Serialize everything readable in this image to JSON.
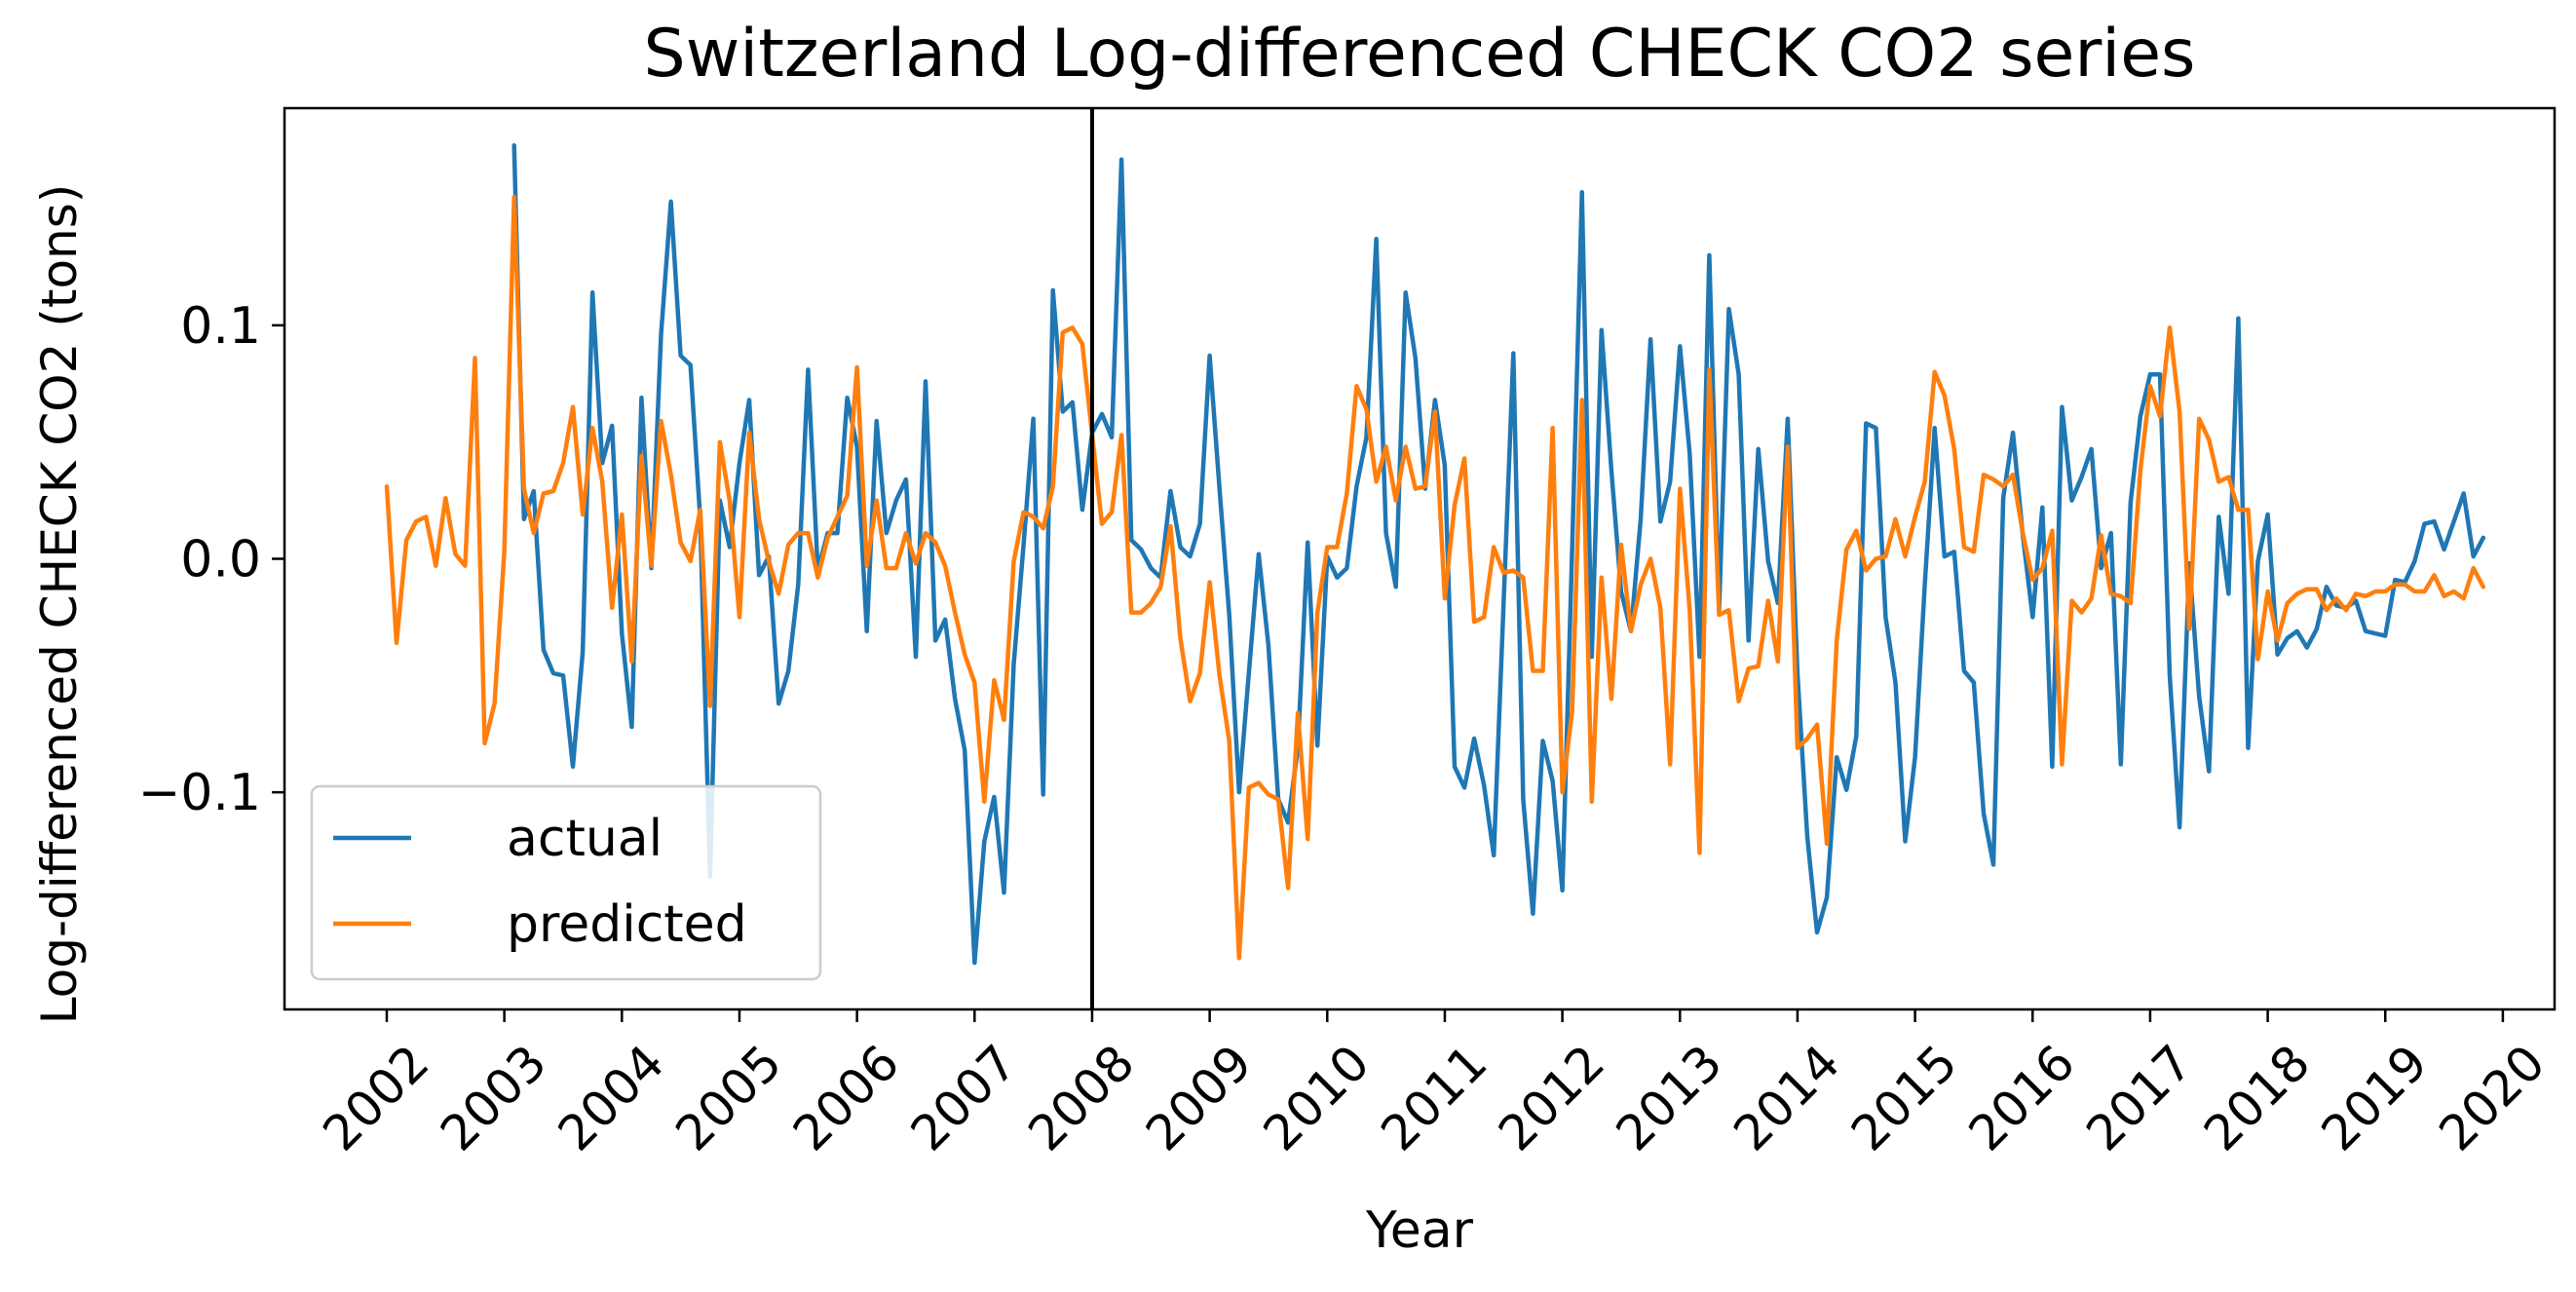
{
  "chart_data": {
    "type": "line",
    "title": "Switzerland Log-differenced CHECK CO2 series",
    "xlabel": "Year",
    "ylabel": "Log-differenced CHECK CO2 (tons)",
    "x_start": "2002-01",
    "x_step_months": 1,
    "xlim": [
      2001.13,
      2020.44
    ],
    "ylim": [
      -0.193,
      0.193
    ],
    "x_ticks": [
      "2002",
      "2003",
      "2004",
      "2005",
      "2006",
      "2007",
      "2008",
      "2009",
      "2010",
      "2011",
      "2012",
      "2013",
      "2014",
      "2015",
      "2016",
      "2017",
      "2018",
      "2019",
      "2020"
    ],
    "y_ticks": [
      {
        "value": 0.1,
        "label": "0.1"
      },
      {
        "value": 0.0,
        "label": "0.0"
      },
      {
        "value": -0.1,
        "label": "−0.1"
      }
    ],
    "vline": {
      "x": "2008-01"
    },
    "grid": false,
    "legend": {
      "position": "lower-left"
    },
    "series": [
      {
        "name": "actual",
        "color": "#1f77b4",
        "values": [
          null,
          null,
          null,
          null,
          null,
          null,
          null,
          null,
          null,
          null,
          null,
          null,
          null,
          0.177,
          0.017,
          0.029,
          -0.039,
          -0.049,
          -0.05,
          -0.089,
          -0.04,
          0.114,
          0.041,
          0.057,
          -0.032,
          -0.072,
          0.069,
          -0.004,
          0.096,
          0.153,
          0.087,
          0.083,
          0.017,
          -0.136,
          0.025,
          0.005,
          0.041,
          0.068,
          -0.007,
          0.001,
          -0.062,
          -0.048,
          -0.011,
          0.081,
          -0.005,
          0.011,
          0.011,
          0.069,
          0.048,
          -0.031,
          0.059,
          0.011,
          0.025,
          0.034,
          -0.042,
          0.076,
          -0.035,
          -0.026,
          -0.06,
          -0.082,
          -0.173,
          -0.121,
          -0.102,
          -0.143,
          -0.045,
          0.006,
          0.06,
          -0.101,
          0.115,
          0.063,
          0.067,
          0.021,
          0.054,
          0.062,
          0.052,
          0.171,
          0.008,
          0.004,
          -0.004,
          -0.008,
          0.029,
          0.005,
          0.001,
          0.015,
          0.087,
          0.03,
          -0.024,
          -0.1,
          -0.049,
          0.002,
          -0.037,
          -0.103,
          -0.113,
          -0.081,
          0.007,
          -0.08,
          0.001,
          -0.008,
          -0.004,
          0.031,
          0.052,
          0.137,
          0.011,
          -0.012,
          0.114,
          0.086,
          0.03,
          0.068,
          0.04,
          -0.089,
          -0.098,
          -0.077,
          -0.097,
          -0.127,
          -0.019,
          0.088,
          -0.103,
          -0.152,
          -0.078,
          -0.095,
          -0.142,
          0.005,
          0.157,
          -0.042,
          0.098,
          0.038,
          -0.014,
          -0.031,
          0.017,
          0.094,
          0.016,
          0.033,
          0.091,
          0.045,
          -0.042,
          0.13,
          -0.022,
          0.107,
          0.079,
          -0.035,
          0.047,
          -0.001,
          -0.019,
          0.06,
          -0.049,
          -0.119,
          -0.16,
          -0.145,
          -0.085,
          -0.099,
          -0.076,
          0.058,
          0.056,
          -0.025,
          -0.053,
          -0.121,
          -0.085,
          -0.011,
          0.056,
          0.001,
          0.003,
          -0.048,
          -0.053,
          -0.109,
          -0.131,
          0.026,
          0.054,
          0.01,
          -0.025,
          0.022,
          -0.089,
          0.065,
          0.025,
          0.035,
          0.047,
          -0.004,
          0.011,
          -0.088,
          0.024,
          0.061,
          0.079,
          0.079,
          -0.05,
          -0.115,
          -0.002,
          -0.059,
          -0.091,
          0.018,
          -0.015,
          0.103,
          -0.081,
          -0.001,
          0.019,
          -0.041,
          -0.034,
          -0.031,
          -0.038,
          -0.03,
          -0.012,
          -0.02,
          -0.021,
          -0.018,
          -0.031,
          -0.032,
          -0.033,
          -0.009,
          -0.01,
          -0.001,
          0.015,
          0.016,
          0.004,
          0.016,
          0.028,
          0.001,
          0.009
        ]
      },
      {
        "name": "predicted",
        "color": "#ff7f0e",
        "values": [
          0.031,
          -0.036,
          0.008,
          0.016,
          0.018,
          -0.003,
          0.026,
          0.002,
          -0.003,
          0.086,
          -0.079,
          -0.062,
          0.003,
          0.155,
          0.03,
          0.011,
          0.028,
          0.029,
          0.041,
          0.065,
          0.019,
          0.056,
          0.033,
          -0.021,
          0.019,
          -0.044,
          0.044,
          -0.003,
          0.059,
          0.036,
          0.007,
          -0.001,
          0.021,
          -0.063,
          0.05,
          0.025,
          -0.025,
          0.054,
          0.017,
          -0.001,
          -0.015,
          0.006,
          0.011,
          0.011,
          -0.008,
          0.009,
          0.018,
          0.027,
          0.082,
          -0.003,
          0.025,
          -0.004,
          -0.004,
          0.011,
          -0.002,
          0.011,
          0.007,
          -0.003,
          -0.023,
          -0.041,
          -0.053,
          -0.104,
          -0.052,
          -0.069,
          -0.001,
          0.02,
          0.018,
          0.013,
          0.031,
          0.097,
          0.099,
          0.092,
          0.053,
          0.015,
          0.02,
          0.053,
          -0.023,
          -0.023,
          -0.019,
          -0.012,
          0.014,
          -0.034,
          -0.061,
          -0.049,
          -0.01,
          -0.05,
          -0.078,
          -0.171,
          -0.098,
          -0.096,
          -0.101,
          -0.103,
          -0.141,
          -0.066,
          -0.12,
          -0.023,
          0.005,
          0.005,
          0.028,
          0.074,
          0.064,
          0.033,
          0.048,
          0.025,
          0.048,
          0.03,
          0.031,
          0.063,
          -0.017,
          0.023,
          0.043,
          -0.027,
          -0.025,
          0.005,
          -0.006,
          -0.005,
          -0.008,
          -0.048,
          -0.048,
          0.056,
          -0.1,
          -0.065,
          0.068,
          -0.104,
          -0.008,
          -0.06,
          0.006,
          -0.031,
          -0.011,
          0.0,
          -0.021,
          -0.088,
          0.03,
          -0.022,
          -0.126,
          0.081,
          -0.024,
          -0.022,
          -0.061,
          -0.047,
          -0.046,
          -0.018,
          -0.044,
          0.048,
          -0.081,
          -0.077,
          -0.071,
          -0.122,
          -0.035,
          0.004,
          0.012,
          -0.005,
          0.0,
          0.001,
          0.017,
          0.001,
          0.018,
          0.033,
          0.08,
          0.07,
          0.047,
          0.005,
          0.003,
          0.036,
          0.034,
          0.031,
          0.036,
          0.011,
          -0.009,
          -0.004,
          0.012,
          -0.088,
          -0.018,
          -0.023,
          -0.017,
          0.01,
          -0.015,
          -0.016,
          -0.019,
          0.038,
          0.074,
          0.061,
          0.099,
          0.063,
          -0.03,
          0.06,
          0.051,
          0.033,
          0.035,
          0.021,
          0.021,
          -0.043,
          -0.014,
          -0.035,
          -0.019,
          -0.015,
          -0.013,
          -0.013,
          -0.022,
          -0.017,
          -0.022,
          -0.015,
          -0.016,
          -0.014,
          -0.014,
          -0.011,
          -0.011,
          -0.014,
          -0.014,
          -0.007,
          -0.016,
          -0.014,
          -0.017,
          -0.004,
          -0.012
        ]
      }
    ]
  }
}
